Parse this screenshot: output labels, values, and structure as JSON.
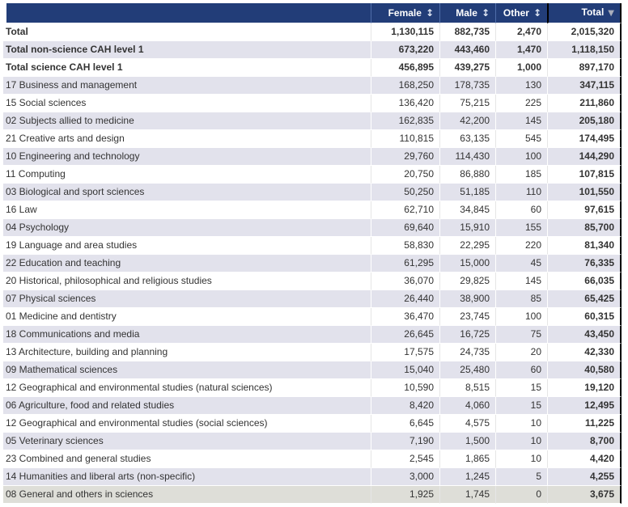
{
  "colors": {
    "header_bg": "#223d78",
    "header_text": "#ffffff",
    "header_separator": "#4f6da9",
    "stripe_bg": "#e2e2ec",
    "plain_bg": "#ffffff",
    "highlight_bg": "#deded8",
    "body_text": "#333333",
    "total_border": "#000000",
    "sort_both_color": "#dfe6f3",
    "sort_desc_color": "#a9aebc"
  },
  "table": {
    "icons": {
      "sort_both": "↕",
      "sort_desc": "▼"
    },
    "columns": [
      {
        "label": "",
        "sort": "none"
      },
      {
        "label": "Female",
        "sort": "both"
      },
      {
        "label": "Male",
        "sort": "both"
      },
      {
        "label": "Other",
        "sort": "both"
      },
      {
        "label": "Total",
        "sort": "desc"
      }
    ],
    "rows": [
      {
        "label": "Total",
        "female": "1,130,115",
        "male": "882,735",
        "other": "2,470",
        "total": "2,015,320",
        "bold": true
      },
      {
        "label": "Total non-science CAH level 1",
        "female": "673,220",
        "male": "443,460",
        "other": "1,470",
        "total": "1,118,150",
        "bold": true
      },
      {
        "label": "Total science CAH level 1",
        "female": "456,895",
        "male": "439,275",
        "other": "1,000",
        "total": "897,170",
        "bold": true
      },
      {
        "label": "17 Business and management",
        "female": "168,250",
        "male": "178,735",
        "other": "130",
        "total": "347,115"
      },
      {
        "label": "15 Social sciences",
        "female": "136,420",
        "male": "75,215",
        "other": "225",
        "total": "211,860"
      },
      {
        "label": "02 Subjects allied to medicine",
        "female": "162,835",
        "male": "42,200",
        "other": "145",
        "total": "205,180"
      },
      {
        "label": "21 Creative arts and design",
        "female": "110,815",
        "male": "63,135",
        "other": "545",
        "total": "174,495"
      },
      {
        "label": "10 Engineering and technology",
        "female": "29,760",
        "male": "114,430",
        "other": "100",
        "total": "144,290"
      },
      {
        "label": "11 Computing",
        "female": "20,750",
        "male": "86,880",
        "other": "185",
        "total": "107,815"
      },
      {
        "label": "03 Biological and sport sciences",
        "female": "50,250",
        "male": "51,185",
        "other": "110",
        "total": "101,550"
      },
      {
        "label": "16 Law",
        "female": "62,710",
        "male": "34,845",
        "other": "60",
        "total": "97,615"
      },
      {
        "label": "04 Psychology",
        "female": "69,640",
        "male": "15,910",
        "other": "155",
        "total": "85,700"
      },
      {
        "label": "19 Language and area studies",
        "female": "58,830",
        "male": "22,295",
        "other": "220",
        "total": "81,340"
      },
      {
        "label": "22 Education and teaching",
        "female": "61,295",
        "male": "15,000",
        "other": "45",
        "total": "76,335"
      },
      {
        "label": "20 Historical, philosophical and religious studies",
        "female": "36,070",
        "male": "29,825",
        "other": "145",
        "total": "66,035"
      },
      {
        "label": "07 Physical sciences",
        "female": "26,440",
        "male": "38,900",
        "other": "85",
        "total": "65,425"
      },
      {
        "label": "01 Medicine and dentistry",
        "female": "36,470",
        "male": "23,745",
        "other": "100",
        "total": "60,315"
      },
      {
        "label": "18 Communications and media",
        "female": "26,645",
        "male": "16,725",
        "other": "75",
        "total": "43,450"
      },
      {
        "label": "13 Architecture, building and planning",
        "female": "17,575",
        "male": "24,735",
        "other": "20",
        "total": "42,330"
      },
      {
        "label": "09 Mathematical sciences",
        "female": "15,040",
        "male": "25,480",
        "other": "60",
        "total": "40,580"
      },
      {
        "label": "12 Geographical and environmental studies (natural sciences)",
        "female": "10,590",
        "male": "8,515",
        "other": "15",
        "total": "19,120"
      },
      {
        "label": "06 Agriculture, food and related studies",
        "female": "8,420",
        "male": "4,060",
        "other": "15",
        "total": "12,495"
      },
      {
        "label": "12 Geographical and environmental studies (social sciences)",
        "female": "6,645",
        "male": "4,575",
        "other": "10",
        "total": "11,225"
      },
      {
        "label": "05 Veterinary sciences",
        "female": "7,190",
        "male": "1,500",
        "other": "10",
        "total": "8,700"
      },
      {
        "label": "23 Combined and general studies",
        "female": "2,545",
        "male": "1,865",
        "other": "10",
        "total": "4,420"
      },
      {
        "label": "14 Humanities and liberal arts (non-specific)",
        "female": "3,000",
        "male": "1,245",
        "other": "5",
        "total": "4,255"
      },
      {
        "label": "08 General and others in sciences",
        "female": "1,925",
        "male": "1,745",
        "other": "0",
        "total": "3,675",
        "highlight": true
      }
    ]
  }
}
